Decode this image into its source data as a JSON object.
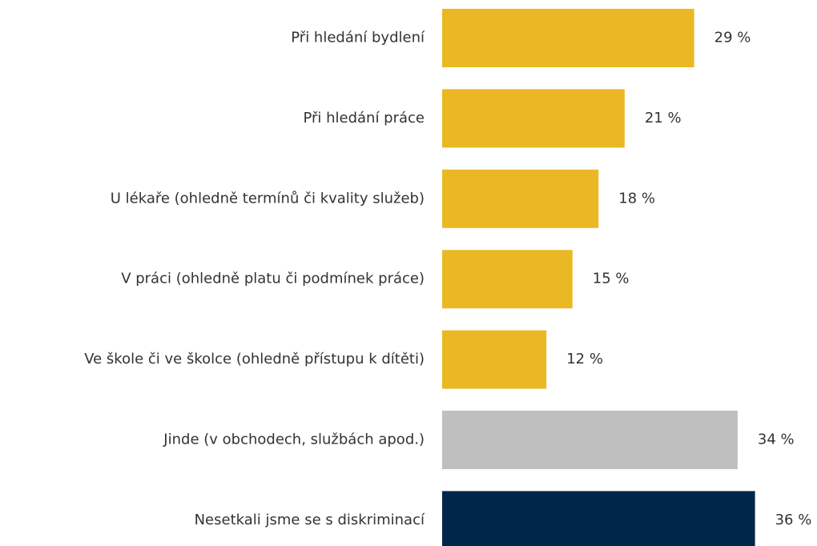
{
  "chart_data": {
    "type": "bar",
    "orientation": "horizontal",
    "categories": [
      "Při hledání bydlení",
      "Při hledání práce",
      "U lékaře (ohledně termínů či kvality služeb)",
      "V práci (ohledně platu či podmínek práce)",
      "Ve škole či ve školce (ohledně přístupu k dítěti)",
      "Jinde (v obchodech, službách apod.)",
      "Nesetkali jsme se s diskriminací"
    ],
    "values": [
      29,
      21,
      18,
      15,
      12,
      34,
      36
    ],
    "value_labels": [
      "29 %",
      "21 %",
      "18 %",
      "15 %",
      "12 %",
      "34 %",
      "36 %"
    ],
    "colors": [
      "#ebb825",
      "#ebb825",
      "#ebb825",
      "#ebb825",
      "#ebb825",
      "#bfbfbf",
      "#00264a"
    ]
  }
}
